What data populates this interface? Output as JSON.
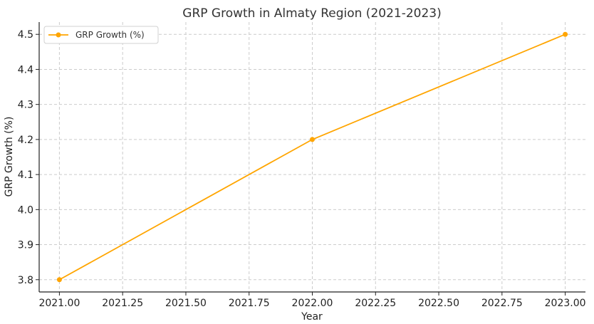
{
  "chart_data": {
    "type": "line",
    "title": "GRP Growth in Almaty Region (2021-2023)",
    "xlabel": "Year",
    "ylabel": "GRP Growth (%)",
    "xlim": [
      2020.92,
      2023.08
    ],
    "ylim": [
      3.765,
      4.535
    ],
    "x_ticks": [
      2021.0,
      2021.25,
      2021.5,
      2021.75,
      2022.0,
      2022.25,
      2022.5,
      2022.75,
      2023.0
    ],
    "x_tick_labels": [
      "2021.00",
      "2021.25",
      "2021.50",
      "2021.75",
      "2022.00",
      "2022.25",
      "2022.50",
      "2022.75",
      "2023.00"
    ],
    "y_ticks": [
      3.8,
      3.9,
      4.0,
      4.1,
      4.2,
      4.3,
      4.4,
      4.5
    ],
    "y_tick_labels": [
      "3.8",
      "3.9",
      "4.0",
      "4.1",
      "4.2",
      "4.3",
      "4.4",
      "4.5"
    ],
    "grid": true,
    "legend_position": "top-left",
    "series": [
      {
        "name": "GRP Growth (%)",
        "color": "#FFA500",
        "marker": "circle",
        "x": [
          2021,
          2022,
          2023
        ],
        "y": [
          3.8,
          4.2,
          4.5
        ]
      }
    ]
  }
}
